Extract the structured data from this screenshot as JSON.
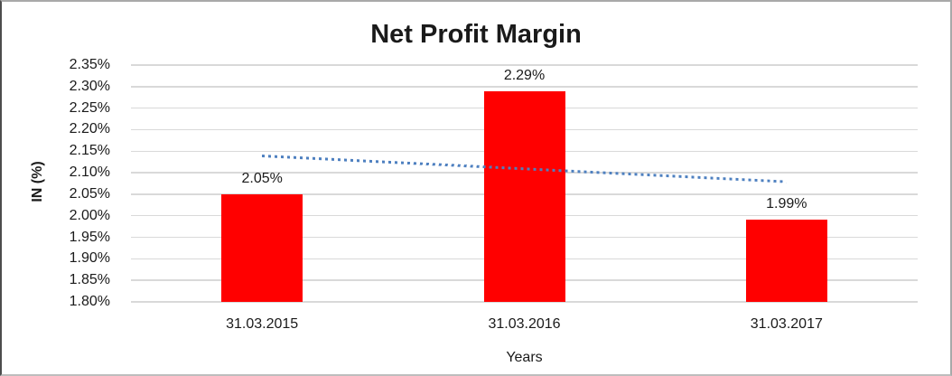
{
  "chart_data": {
    "type": "bar",
    "title": "Net Profit Margin",
    "categories": [
      "31.03.2015",
      "31.03.2016",
      "31.03.2017"
    ],
    "values": [
      2.05,
      2.29,
      1.99
    ],
    "value_labels": [
      "2.05%",
      "2.29%",
      "1.99%"
    ],
    "xlabel": "Years",
    "ylabel": "IN (%)",
    "ylim": [
      1.8,
      2.35
    ],
    "yticks": [
      {
        "value": 2.35,
        "label": "2.35%"
      },
      {
        "value": 2.3,
        "label": "2.30%"
      },
      {
        "value": 2.25,
        "label": "2.25%"
      },
      {
        "value": 2.2,
        "label": "2.20%"
      },
      {
        "value": 2.15,
        "label": "2.15%"
      },
      {
        "value": 2.1,
        "label": "2.10%"
      },
      {
        "value": 2.05,
        "label": "2.05%"
      },
      {
        "value": 2.0,
        "label": "2.00%"
      },
      {
        "value": 1.95,
        "label": "1.95%"
      },
      {
        "value": 1.9,
        "label": "1.90%"
      },
      {
        "value": 1.85,
        "label": "1.85%"
      },
      {
        "value": 1.8,
        "label": "1.80%"
      }
    ],
    "grid": true,
    "legend": "none",
    "bar_color": "#FF0000",
    "gridline_color": "#D9D9D9",
    "text_color": "#1A1A1A",
    "trendline": {
      "style": "dotted",
      "color": "#4E80C0",
      "start_value": 2.14,
      "end_value": 2.08
    }
  }
}
